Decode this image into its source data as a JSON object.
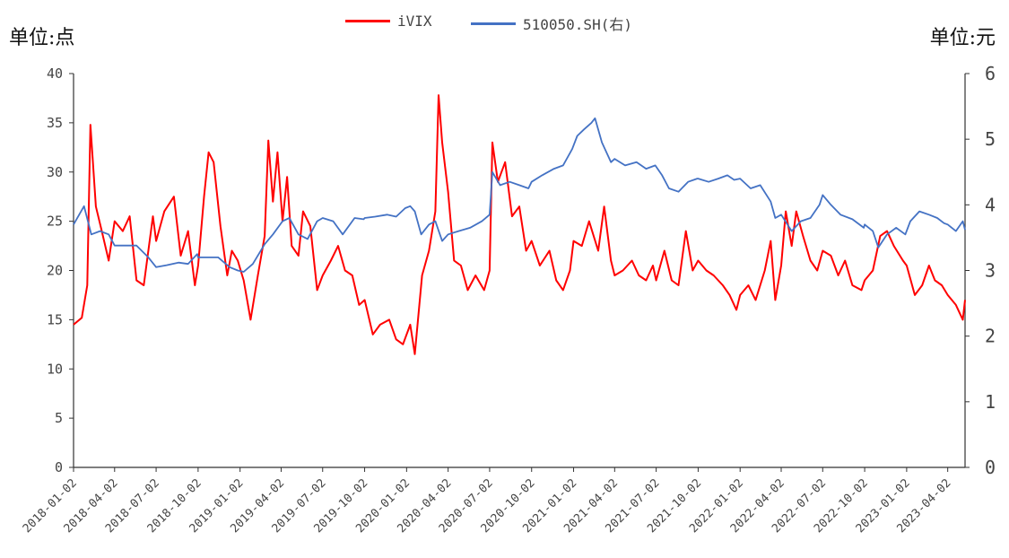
{
  "units": {
    "left": "单位:点",
    "right": "单位:元"
  },
  "chart_data": {
    "type": "line",
    "ylim_left": [
      0,
      40
    ],
    "ylim_right": [
      0,
      6
    ],
    "yticks_left": [
      "0",
      "5",
      "10",
      "15",
      "20",
      "25",
      "30",
      "35",
      "40"
    ],
    "yticks_right": [
      "0",
      "1",
      "2",
      "3",
      "4",
      "5",
      "6"
    ],
    "xticks": [
      "2018-01-02",
      "2018-04-02",
      "2018-07-02",
      "2018-10-02",
      "2019-01-02",
      "2019-04-02",
      "2019-07-02",
      "2019-10-02",
      "2020-01-02",
      "2020-04-02",
      "2020-07-02",
      "2020-10-02",
      "2021-01-02",
      "2021-04-02",
      "2021-07-02",
      "2021-10-02",
      "2022-01-02",
      "2022-04-02",
      "2022-07-02",
      "2022-10-02",
      "2023-01-02",
      "2023-04-02"
    ],
    "grid": false,
    "legend_position": "top-center",
    "series": [
      {
        "name": "iVIX",
        "axis": "left",
        "color": "#ff0000",
        "points": [
          [
            "2018-01-02",
            14.5
          ],
          [
            "2018-01-20",
            15.2
          ],
          [
            "2018-02-01",
            18.5
          ],
          [
            "2018-02-08",
            34.8
          ],
          [
            "2018-02-20",
            26.5
          ],
          [
            "2018-03-05",
            24.0
          ],
          [
            "2018-03-20",
            21.0
          ],
          [
            "2018-04-02",
            25.0
          ],
          [
            "2018-04-20",
            24.0
          ],
          [
            "2018-05-05",
            25.5
          ],
          [
            "2018-05-20",
            19.0
          ],
          [
            "2018-06-05",
            18.5
          ],
          [
            "2018-06-25",
            25.5
          ],
          [
            "2018-07-02",
            23.0
          ],
          [
            "2018-07-20",
            26.0
          ],
          [
            "2018-08-10",
            27.5
          ],
          [
            "2018-08-25",
            21.5
          ],
          [
            "2018-09-10",
            24.0
          ],
          [
            "2018-09-25",
            18.5
          ],
          [
            "2018-10-02",
            20.5
          ],
          [
            "2018-10-15",
            27.5
          ],
          [
            "2018-10-25",
            32.0
          ],
          [
            "2018-11-05",
            31.0
          ],
          [
            "2018-11-20",
            24.5
          ],
          [
            "2018-12-05",
            19.5
          ],
          [
            "2018-12-15",
            22.0
          ],
          [
            "2018-12-28",
            21.0
          ],
          [
            "2019-01-10",
            19.0
          ],
          [
            "2019-01-25",
            15.0
          ],
          [
            "2019-02-10",
            19.5
          ],
          [
            "2019-02-25",
            23.5
          ],
          [
            "2019-03-05",
            33.2
          ],
          [
            "2019-03-15",
            27.0
          ],
          [
            "2019-03-25",
            32.0
          ],
          [
            "2019-04-05",
            25.0
          ],
          [
            "2019-04-15",
            29.5
          ],
          [
            "2019-04-25",
            22.5
          ],
          [
            "2019-05-10",
            21.5
          ],
          [
            "2019-05-20",
            26.0
          ],
          [
            "2019-06-05",
            24.5
          ],
          [
            "2019-06-20",
            18.0
          ],
          [
            "2019-07-02",
            19.5
          ],
          [
            "2019-07-20",
            21.0
          ],
          [
            "2019-08-05",
            22.5
          ],
          [
            "2019-08-20",
            20.0
          ],
          [
            "2019-09-05",
            19.5
          ],
          [
            "2019-09-20",
            16.5
          ],
          [
            "2019-10-02",
            17.0
          ],
          [
            "2019-10-20",
            13.5
          ],
          [
            "2019-11-05",
            14.5
          ],
          [
            "2019-11-25",
            15.0
          ],
          [
            "2019-12-10",
            13.0
          ],
          [
            "2019-12-25",
            12.5
          ],
          [
            "2020-01-10",
            14.5
          ],
          [
            "2020-01-20",
            11.5
          ],
          [
            "2020-02-05",
            19.5
          ],
          [
            "2020-02-20",
            22.0
          ],
          [
            "2020-03-05",
            26.0
          ],
          [
            "2020-03-12",
            37.8
          ],
          [
            "2020-03-20",
            33.0
          ],
          [
            "2020-04-02",
            28.0
          ],
          [
            "2020-04-15",
            21.0
          ],
          [
            "2020-04-30",
            20.5
          ],
          [
            "2020-05-15",
            18.0
          ],
          [
            "2020-06-01",
            19.5
          ],
          [
            "2020-06-20",
            18.0
          ],
          [
            "2020-07-02",
            20.0
          ],
          [
            "2020-07-08",
            33.0
          ],
          [
            "2020-07-20",
            29.0
          ],
          [
            "2020-08-05",
            31.0
          ],
          [
            "2020-08-20",
            25.5
          ],
          [
            "2020-09-05",
            26.5
          ],
          [
            "2020-09-20",
            22.0
          ],
          [
            "2020-10-02",
            23.0
          ],
          [
            "2020-10-20",
            20.5
          ],
          [
            "2020-11-10",
            22.0
          ],
          [
            "2020-11-25",
            19.0
          ],
          [
            "2020-12-10",
            18.0
          ],
          [
            "2020-12-25",
            20.0
          ],
          [
            "2021-01-02",
            23.0
          ],
          [
            "2021-01-20",
            22.5
          ],
          [
            "2021-02-05",
            25.0
          ],
          [
            "2021-02-25",
            22.0
          ],
          [
            "2021-03-10",
            26.5
          ],
          [
            "2021-03-25",
            21.0
          ],
          [
            "2021-04-02",
            19.5
          ],
          [
            "2021-04-20",
            20.0
          ],
          [
            "2021-05-10",
            21.0
          ],
          [
            "2021-05-25",
            19.5
          ],
          [
            "2021-06-10",
            19.0
          ],
          [
            "2021-06-25",
            20.5
          ],
          [
            "2021-07-02",
            19.0
          ],
          [
            "2021-07-20",
            22.0
          ],
          [
            "2021-08-05",
            19.0
          ],
          [
            "2021-08-20",
            18.5
          ],
          [
            "2021-09-05",
            24.0
          ],
          [
            "2021-09-20",
            20.0
          ],
          [
            "2021-10-02",
            21.0
          ],
          [
            "2021-10-20",
            20.0
          ],
          [
            "2021-11-05",
            19.5
          ],
          [
            "2021-11-25",
            18.5
          ],
          [
            "2021-12-10",
            17.5
          ],
          [
            "2021-12-25",
            16.0
          ],
          [
            "2022-01-02",
            17.5
          ],
          [
            "2022-01-20",
            18.5
          ],
          [
            "2022-02-05",
            17.0
          ],
          [
            "2022-02-25",
            20.0
          ],
          [
            "2022-03-10",
            23.0
          ],
          [
            "2022-03-20",
            17.0
          ],
          [
            "2022-04-02",
            20.5
          ],
          [
            "2022-04-12",
            26.0
          ],
          [
            "2022-04-25",
            22.5
          ],
          [
            "2022-05-05",
            26.0
          ],
          [
            "2022-05-20",
            23.5
          ],
          [
            "2022-06-05",
            21.0
          ],
          [
            "2022-06-20",
            20.0
          ],
          [
            "2022-07-02",
            22.0
          ],
          [
            "2022-07-20",
            21.5
          ],
          [
            "2022-08-05",
            19.5
          ],
          [
            "2022-08-20",
            21.0
          ],
          [
            "2022-09-05",
            18.5
          ],
          [
            "2022-09-25",
            18.0
          ],
          [
            "2022-10-02",
            19.0
          ],
          [
            "2022-10-20",
            20.0
          ],
          [
            "2022-11-05",
            23.5
          ],
          [
            "2022-11-20",
            24.0
          ],
          [
            "2022-12-05",
            22.5
          ],
          [
            "2022-12-25",
            21.0
          ],
          [
            "2023-01-02",
            20.5
          ],
          [
            "2023-01-20",
            17.5
          ],
          [
            "2023-02-05",
            18.5
          ],
          [
            "2023-02-20",
            20.5
          ],
          [
            "2023-03-05",
            19.0
          ],
          [
            "2023-03-20",
            18.5
          ],
          [
            "2023-04-02",
            17.5
          ],
          [
            "2023-04-20",
            16.5
          ],
          [
            "2023-05-05",
            15.0
          ],
          [
            "2023-05-10",
            17.0
          ]
        ]
      },
      {
        "name": "510050.SH(右)",
        "axis": "right",
        "color": "#4472c4",
        "points": [
          [
            "2018-01-02",
            3.7
          ],
          [
            "2018-01-25",
            3.98
          ],
          [
            "2018-02-10",
            3.55
          ],
          [
            "2018-03-01",
            3.6
          ],
          [
            "2018-03-20",
            3.55
          ],
          [
            "2018-04-02",
            3.38
          ],
          [
            "2018-04-25",
            3.38
          ],
          [
            "2018-05-20",
            3.38
          ],
          [
            "2018-06-15",
            3.2
          ],
          [
            "2018-07-02",
            3.05
          ],
          [
            "2018-07-25",
            3.08
          ],
          [
            "2018-08-20",
            3.12
          ],
          [
            "2018-09-10",
            3.1
          ],
          [
            "2018-09-30",
            3.25
          ],
          [
            "2018-10-02",
            3.2
          ],
          [
            "2018-10-25",
            3.2
          ],
          [
            "2018-11-15",
            3.2
          ],
          [
            "2018-12-10",
            3.05
          ],
          [
            "2018-12-28",
            3.0
          ],
          [
            "2019-01-10",
            2.98
          ],
          [
            "2019-01-30",
            3.1
          ],
          [
            "2019-02-25",
            3.4
          ],
          [
            "2019-03-15",
            3.55
          ],
          [
            "2019-04-05",
            3.75
          ],
          [
            "2019-04-20",
            3.8
          ],
          [
            "2019-05-10",
            3.55
          ],
          [
            "2019-05-30",
            3.48
          ],
          [
            "2019-06-20",
            3.75
          ],
          [
            "2019-07-02",
            3.8
          ],
          [
            "2019-07-25",
            3.75
          ],
          [
            "2019-08-15",
            3.55
          ],
          [
            "2019-09-10",
            3.8
          ],
          [
            "2019-09-30",
            3.78
          ],
          [
            "2019-10-02",
            3.8
          ],
          [
            "2019-10-25",
            3.82
          ],
          [
            "2019-11-20",
            3.85
          ],
          [
            "2019-12-10",
            3.82
          ],
          [
            "2019-12-30",
            3.95
          ],
          [
            "2020-01-10",
            3.98
          ],
          [
            "2020-01-20",
            3.9
          ],
          [
            "2020-02-03",
            3.55
          ],
          [
            "2020-02-20",
            3.7
          ],
          [
            "2020-03-05",
            3.75
          ],
          [
            "2020-03-20",
            3.45
          ],
          [
            "2020-04-02",
            3.55
          ],
          [
            "2020-04-25",
            3.6
          ],
          [
            "2020-05-20",
            3.65
          ],
          [
            "2020-06-15",
            3.75
          ],
          [
            "2020-07-02",
            3.85
          ],
          [
            "2020-07-08",
            4.5
          ],
          [
            "2020-07-25",
            4.3
          ],
          [
            "2020-08-15",
            4.35
          ],
          [
            "2020-09-05",
            4.3
          ],
          [
            "2020-09-25",
            4.25
          ],
          [
            "2020-10-02",
            4.35
          ],
          [
            "2020-10-25",
            4.45
          ],
          [
            "2020-11-20",
            4.55
          ],
          [
            "2020-12-10",
            4.6
          ],
          [
            "2020-12-30",
            4.85
          ],
          [
            "2021-01-10",
            5.05
          ],
          [
            "2021-01-25",
            5.15
          ],
          [
            "2021-02-10",
            5.25
          ],
          [
            "2021-02-18",
            5.32
          ],
          [
            "2021-03-05",
            4.95
          ],
          [
            "2021-03-25",
            4.65
          ],
          [
            "2021-04-02",
            4.7
          ],
          [
            "2021-04-25",
            4.6
          ],
          [
            "2021-05-20",
            4.65
          ],
          [
            "2021-06-10",
            4.55
          ],
          [
            "2021-06-30",
            4.6
          ],
          [
            "2021-07-15",
            4.45
          ],
          [
            "2021-07-30",
            4.25
          ],
          [
            "2021-08-20",
            4.2
          ],
          [
            "2021-09-10",
            4.35
          ],
          [
            "2021-09-30",
            4.4
          ],
          [
            "2021-10-02",
            4.4
          ],
          [
            "2021-10-25",
            4.35
          ],
          [
            "2021-11-15",
            4.4
          ],
          [
            "2021-12-05",
            4.45
          ],
          [
            "2021-12-20",
            4.38
          ],
          [
            "2022-01-02",
            4.4
          ],
          [
            "2022-01-25",
            4.25
          ],
          [
            "2022-02-15",
            4.3
          ],
          [
            "2022-03-10",
            4.05
          ],
          [
            "2022-03-20",
            3.8
          ],
          [
            "2022-04-02",
            3.85
          ],
          [
            "2022-04-25",
            3.6
          ],
          [
            "2022-05-15",
            3.75
          ],
          [
            "2022-06-05",
            3.8
          ],
          [
            "2022-06-25",
            4.0
          ],
          [
            "2022-07-02",
            4.15
          ],
          [
            "2022-07-20",
            4.0
          ],
          [
            "2022-08-10",
            3.85
          ],
          [
            "2022-09-05",
            3.78
          ],
          [
            "2022-09-30",
            3.65
          ],
          [
            "2022-10-02",
            3.7
          ],
          [
            "2022-10-20",
            3.6
          ],
          [
            "2022-11-01",
            3.35
          ],
          [
            "2022-11-20",
            3.55
          ],
          [
            "2022-12-10",
            3.65
          ],
          [
            "2022-12-30",
            3.55
          ],
          [
            "2023-01-10",
            3.75
          ],
          [
            "2023-01-30",
            3.9
          ],
          [
            "2023-02-20",
            3.85
          ],
          [
            "2023-03-10",
            3.8
          ],
          [
            "2023-03-25",
            3.72
          ],
          [
            "2023-04-02",
            3.7
          ],
          [
            "2023-04-20",
            3.6
          ],
          [
            "2023-05-05",
            3.75
          ],
          [
            "2023-05-10",
            3.62
          ]
        ]
      }
    ]
  }
}
